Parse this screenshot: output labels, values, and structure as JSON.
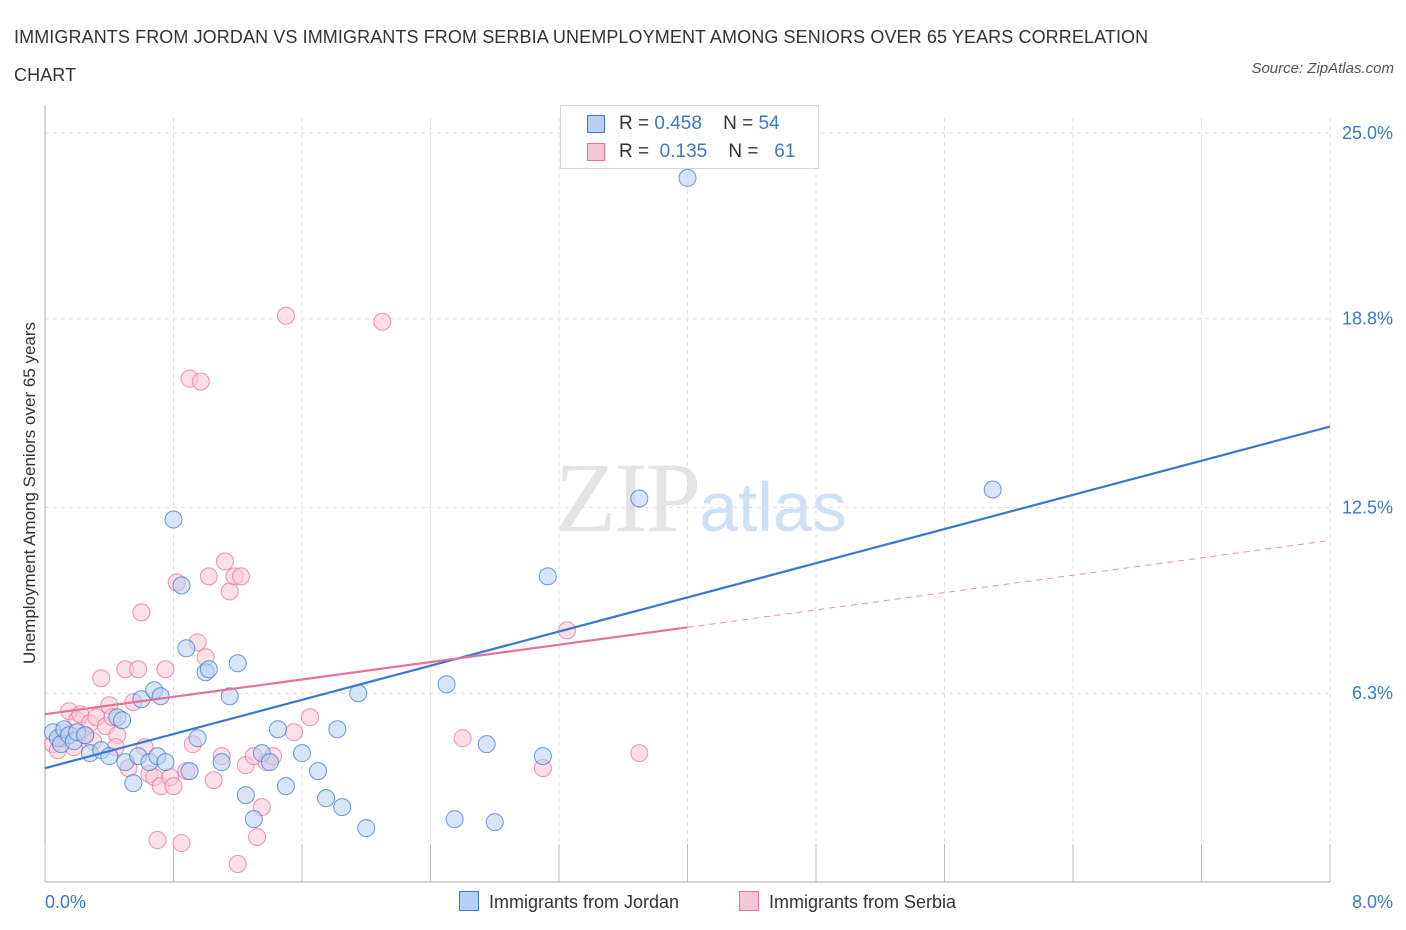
{
  "header": {
    "title": "IMMIGRANTS FROM JORDAN VS IMMIGRANTS FROM SERBIA UNEMPLOYMENT AMONG SENIORS OVER 65 YEARS CORRELATION CHART",
    "source": "Source: ZipAtlas.com"
  },
  "watermark": {
    "zip": "ZIP",
    "atlas": "atlas"
  },
  "legend": {
    "jordan": {
      "r_label": "R =",
      "r_value": "0.458",
      "n_label": "N =",
      "n_value": "54"
    },
    "serbia": {
      "r_label": "R =",
      "r_value": "0.135",
      "n_label": "N =",
      "n_value": "61"
    }
  },
  "colors": {
    "jordan": "#3b78d0",
    "jordan_fill": "#b8d0f3",
    "serbia": "#e8709a",
    "serbia_fill": "#f7c6d5",
    "grid": "#dddddd",
    "tick": "#3b78c9"
  },
  "chart_data": {
    "type": "scatter",
    "title": "IMMIGRANTS FROM JORDAN VS IMMIGRANTS FROM SERBIA UNEMPLOYMENT AMONG SENIORS OVER 65 YEARS CORRELATION CHART",
    "xlabel": "",
    "ylabel": "Unemployment Among Seniors over 65 years",
    "xlim": [
      0,
      8
    ],
    "ylim": [
      0,
      25.5
    ],
    "x_tick_labels": [
      "0.0%",
      "8.0%"
    ],
    "y_ticks": [
      6.3,
      12.5,
      18.8,
      25.0
    ],
    "y_tick_labels": [
      "6.3%",
      "12.5%",
      "18.8%",
      "25.0%"
    ],
    "grid": true,
    "legend_position": "bottom-center",
    "series": [
      {
        "name": "Immigrants from Jordan",
        "color": "#3b78d0",
        "points": [
          [
            0.05,
            5.0
          ],
          [
            0.08,
            4.8
          ],
          [
            0.1,
            4.6
          ],
          [
            0.12,
            5.1
          ],
          [
            0.15,
            4.9
          ],
          [
            0.18,
            4.7
          ],
          [
            0.2,
            5.0
          ],
          [
            0.25,
            4.9
          ],
          [
            0.28,
            4.3
          ],
          [
            0.35,
            4.4
          ],
          [
            0.4,
            4.2
          ],
          [
            0.45,
            5.5
          ],
          [
            0.48,
            5.4
          ],
          [
            0.5,
            4.0
          ],
          [
            0.55,
            3.3
          ],
          [
            0.58,
            4.2
          ],
          [
            0.6,
            6.1
          ],
          [
            0.65,
            4.0
          ],
          [
            0.68,
            6.4
          ],
          [
            0.7,
            4.2
          ],
          [
            0.72,
            6.2
          ],
          [
            0.75,
            4.0
          ],
          [
            0.8,
            12.1
          ],
          [
            0.85,
            9.9
          ],
          [
            0.88,
            7.8
          ],
          [
            0.9,
            3.7
          ],
          [
            0.95,
            4.8
          ],
          [
            1.0,
            7.0
          ],
          [
            1.02,
            7.1
          ],
          [
            1.1,
            4.0
          ],
          [
            1.15,
            6.2
          ],
          [
            1.2,
            7.3
          ],
          [
            1.25,
            2.9
          ],
          [
            1.3,
            2.1
          ],
          [
            1.35,
            4.3
          ],
          [
            1.4,
            4.0
          ],
          [
            1.45,
            5.1
          ],
          [
            1.5,
            3.2
          ],
          [
            1.6,
            4.3
          ],
          [
            1.7,
            3.7
          ],
          [
            1.75,
            2.8
          ],
          [
            1.82,
            5.1
          ],
          [
            1.85,
            2.5
          ],
          [
            1.95,
            6.3
          ],
          [
            2.0,
            1.8
          ],
          [
            2.5,
            6.6
          ],
          [
            2.55,
            2.1
          ],
          [
            2.75,
            4.6
          ],
          [
            2.8,
            2.0
          ],
          [
            3.1,
            4.2
          ],
          [
            3.13,
            10.2
          ],
          [
            3.7,
            12.8
          ],
          [
            4.0,
            23.5
          ],
          [
            5.9,
            13.1
          ]
        ]
      },
      {
        "name": "Immigrants from Serbia",
        "color": "#e8709a",
        "points": [
          [
            0.05,
            4.6
          ],
          [
            0.08,
            4.4
          ],
          [
            0.1,
            4.8
          ],
          [
            0.12,
            5.0
          ],
          [
            0.15,
            5.7
          ],
          [
            0.18,
            4.5
          ],
          [
            0.2,
            5.4
          ],
          [
            0.22,
            5.6
          ],
          [
            0.25,
            4.9
          ],
          [
            0.28,
            5.3
          ],
          [
            0.3,
            4.7
          ],
          [
            0.32,
            5.5
          ],
          [
            0.35,
            6.8
          ],
          [
            0.38,
            5.2
          ],
          [
            0.4,
            5.9
          ],
          [
            0.42,
            5.5
          ],
          [
            0.45,
            4.9
          ],
          [
            0.5,
            7.1
          ],
          [
            0.52,
            3.8
          ],
          [
            0.55,
            6.0
          ],
          [
            0.58,
            7.1
          ],
          [
            0.6,
            9.0
          ],
          [
            0.62,
            4.5
          ],
          [
            0.65,
            3.6
          ],
          [
            0.68,
            3.5
          ],
          [
            0.7,
            1.4
          ],
          [
            0.72,
            3.2
          ],
          [
            0.75,
            7.1
          ],
          [
            0.78,
            3.5
          ],
          [
            0.8,
            3.2
          ],
          [
            0.82,
            10.0
          ],
          [
            0.85,
            1.3
          ],
          [
            0.88,
            3.7
          ],
          [
            0.9,
            16.8
          ],
          [
            0.92,
            4.6
          ],
          [
            0.95,
            8.0
          ],
          [
            0.97,
            16.7
          ],
          [
            1.0,
            7.5
          ],
          [
            1.02,
            10.2
          ],
          [
            1.05,
            3.4
          ],
          [
            1.1,
            4.2
          ],
          [
            1.12,
            10.7
          ],
          [
            1.15,
            9.7
          ],
          [
            1.18,
            10.2
          ],
          [
            1.2,
            0.6
          ],
          [
            1.22,
            10.2
          ],
          [
            1.25,
            3.9
          ],
          [
            1.3,
            4.2
          ],
          [
            1.32,
            1.5
          ],
          [
            1.35,
            2.5
          ],
          [
            1.38,
            4.0
          ],
          [
            1.42,
            4.2
          ],
          [
            1.5,
            18.9
          ],
          [
            1.55,
            5.0
          ],
          [
            1.65,
            5.5
          ],
          [
            2.1,
            18.7
          ],
          [
            2.6,
            4.8
          ],
          [
            3.1,
            3.8
          ],
          [
            3.25,
            8.4
          ],
          [
            3.7,
            4.3
          ],
          [
            0.44,
            4.5
          ]
        ]
      }
    ],
    "trendlines": [
      {
        "series": "Immigrants from Jordan",
        "x": [
          0,
          8
        ],
        "y": [
          3.8,
          15.2
        ],
        "style": "solid"
      },
      {
        "series": "Immigrants from Serbia",
        "x": [
          0,
          4
        ],
        "y": [
          5.6,
          8.5
        ],
        "style": "solid"
      },
      {
        "series": "Immigrants from Serbia",
        "x": [
          4,
          8
        ],
        "y": [
          8.5,
          11.4
        ],
        "style": "dashed"
      }
    ]
  },
  "bottom_legend": {
    "jordan": "Immigrants from Jordan",
    "serbia": "Immigrants from Serbia"
  }
}
